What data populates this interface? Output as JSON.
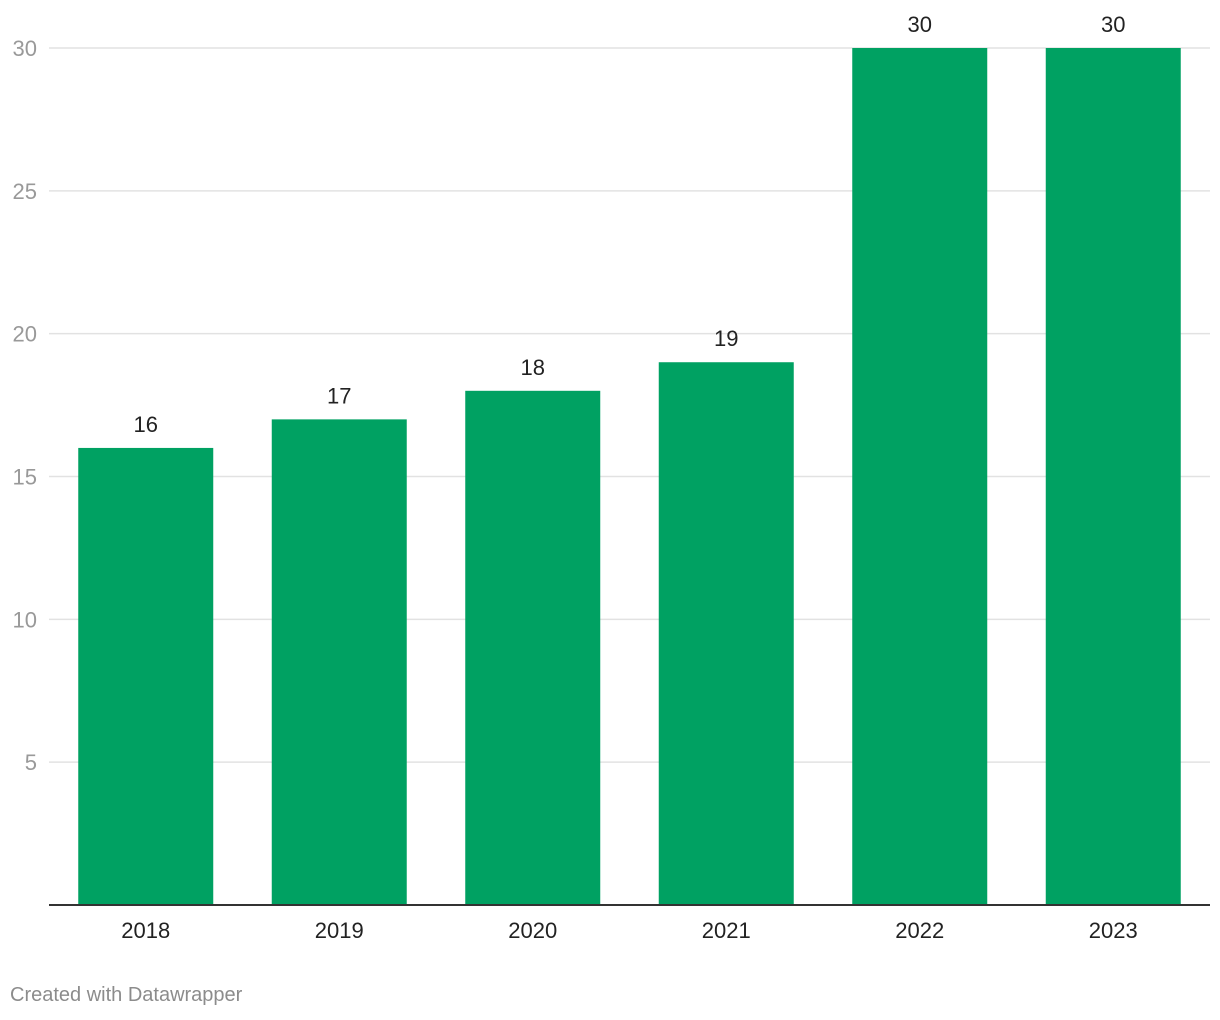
{
  "chart_data": {
    "type": "bar",
    "categories": [
      "2018",
      "2019",
      "2020",
      "2021",
      "2022",
      "2023"
    ],
    "values": [
      16,
      17,
      18,
      19,
      30,
      30
    ],
    "ylim": [
      0,
      30
    ],
    "yticks": [
      5,
      10,
      15,
      20,
      25,
      30
    ],
    "bar_color": "#00a162",
    "grid": true,
    "data_labels": true
  },
  "footer": {
    "credit": "Created with Datawrapper"
  }
}
